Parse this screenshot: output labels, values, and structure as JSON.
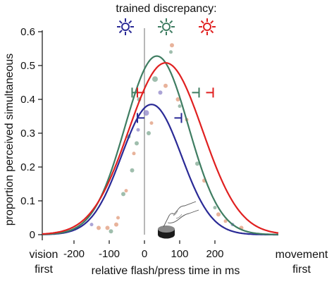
{
  "chart_data": {
    "type": "line",
    "title": "trained discrepancy:",
    "xlabel": "relative flash/press time in ms",
    "ylabel": "proportion perceived simultaneous",
    "x_left_label": [
      "vision",
      "first"
    ],
    "x_right_label": [
      "movement",
      "first"
    ],
    "xlim": [
      -290,
      390
    ],
    "ylim": [
      0,
      0.6
    ],
    "xticks": [
      -200,
      -100,
      0,
      100,
      200
    ],
    "yticks": [
      0,
      0.1,
      0.2,
      0.3,
      0.4,
      0.5,
      0.6
    ],
    "ytick_labels": [
      "0",
      "0.1",
      "0.2",
      "0.3",
      "0.4",
      "0.5",
      "0.6"
    ],
    "grid": false,
    "legend": "none",
    "discrepancy_markers": [
      {
        "x": -165,
        "color": "#2a2a96"
      },
      {
        "x": 0,
        "color": "#3f7d62"
      },
      {
        "x": 165,
        "color": "#e02020"
      }
    ],
    "series": [
      {
        "color": "#2a2a96",
        "peak": 0.385,
        "mu": 20,
        "sigma": 85,
        "range_markers": [
          {
            "x": -10,
            "y": 0.345,
            "dir": "left"
          },
          {
            "x": 95,
            "y": 0.345,
            "dir": "right"
          }
        ]
      },
      {
        "color": "#3f7d62",
        "peak": 0.528,
        "mu": 35,
        "sigma": 90,
        "range_markers": [
          {
            "x": -25,
            "y": 0.42,
            "dir": "left"
          },
          {
            "x": 145,
            "y": 0.42,
            "dir": "right"
          }
        ]
      },
      {
        "color": "#e02020",
        "peak": 0.508,
        "mu": 60,
        "sigma": 105,
        "range_markers": [
          {
            "x": -10,
            "y": 0.42,
            "dir": "left"
          },
          {
            "x": 185,
            "y": 0.42,
            "dir": "right"
          }
        ]
      }
    ],
    "points": [
      {
        "x": -130,
        "y": 0.02,
        "color": "#e09a7a",
        "r": 3
      },
      {
        "x": -150,
        "y": 0.03,
        "color": "#8f86c8",
        "r": 2.5
      },
      {
        "x": -105,
        "y": 0.02,
        "color": "#e09a7a",
        "r": 3
      },
      {
        "x": -95,
        "y": 0.01,
        "color": "#7fa892",
        "r": 3
      },
      {
        "x": -80,
        "y": 0.03,
        "color": "#e09a7a",
        "r": 3
      },
      {
        "x": -75,
        "y": 0.05,
        "color": "#e09a7a",
        "r": 2.5
      },
      {
        "x": -60,
        "y": 0.12,
        "color": "#7fa892",
        "r": 3
      },
      {
        "x": -52,
        "y": 0.13,
        "color": "#e09a7a",
        "r": 2.5
      },
      {
        "x": -35,
        "y": 0.19,
        "color": "#7fa892",
        "r": 3
      },
      {
        "x": -30,
        "y": 0.24,
        "color": "#e09a7a",
        "r": 2.5
      },
      {
        "x": -45,
        "y": 0.29,
        "color": "#7fa892",
        "r": 3
      },
      {
        "x": -22,
        "y": 0.27,
        "color": "#7fa892",
        "r": 3
      },
      {
        "x": -18,
        "y": 0.31,
        "color": "#8f86c8",
        "r": 2.5
      },
      {
        "x": -15,
        "y": 0.4,
        "color": "#7fa892",
        "r": 3
      },
      {
        "x": 5,
        "y": 0.36,
        "color": "#8f86c8",
        "r": 4
      },
      {
        "x": 12,
        "y": 0.3,
        "color": "#7fa892",
        "r": 3
      },
      {
        "x": 20,
        "y": 0.33,
        "color": "#e09a7a",
        "r": 2.5
      },
      {
        "x": 30,
        "y": 0.46,
        "color": "#7fa892",
        "r": 4
      },
      {
        "x": 45,
        "y": 0.42,
        "color": "#8f86c8",
        "r": 3
      },
      {
        "x": 60,
        "y": 0.44,
        "color": "#e09a7a",
        "r": 3
      },
      {
        "x": 75,
        "y": 0.54,
        "color": "#7fa892",
        "r": 2.5
      },
      {
        "x": 78,
        "y": 0.56,
        "color": "#e09a7a",
        "r": 3
      },
      {
        "x": 95,
        "y": 0.4,
        "color": "#e09a7a",
        "r": 3
      },
      {
        "x": 100,
        "y": 0.38,
        "color": "#7fa892",
        "r": 2.5
      },
      {
        "x": 120,
        "y": 0.34,
        "color": "#e09a7a",
        "r": 2.5
      },
      {
        "x": 150,
        "y": 0.21,
        "color": "#7fa892",
        "r": 3
      },
      {
        "x": 170,
        "y": 0.16,
        "color": "#e09a7a",
        "r": 3
      },
      {
        "x": 200,
        "y": 0.08,
        "color": "#7fa892",
        "r": 2.5
      },
      {
        "x": 210,
        "y": 0.06,
        "color": "#e09a7a",
        "r": 3
      },
      {
        "x": 230,
        "y": 0.04,
        "color": "#e09a7a",
        "r": 2.5
      },
      {
        "x": 250,
        "y": 0.03,
        "color": "#8f86c8",
        "r": 2.5
      },
      {
        "x": 275,
        "y": 0.02,
        "color": "#e09a7a",
        "r": 3
      }
    ]
  }
}
